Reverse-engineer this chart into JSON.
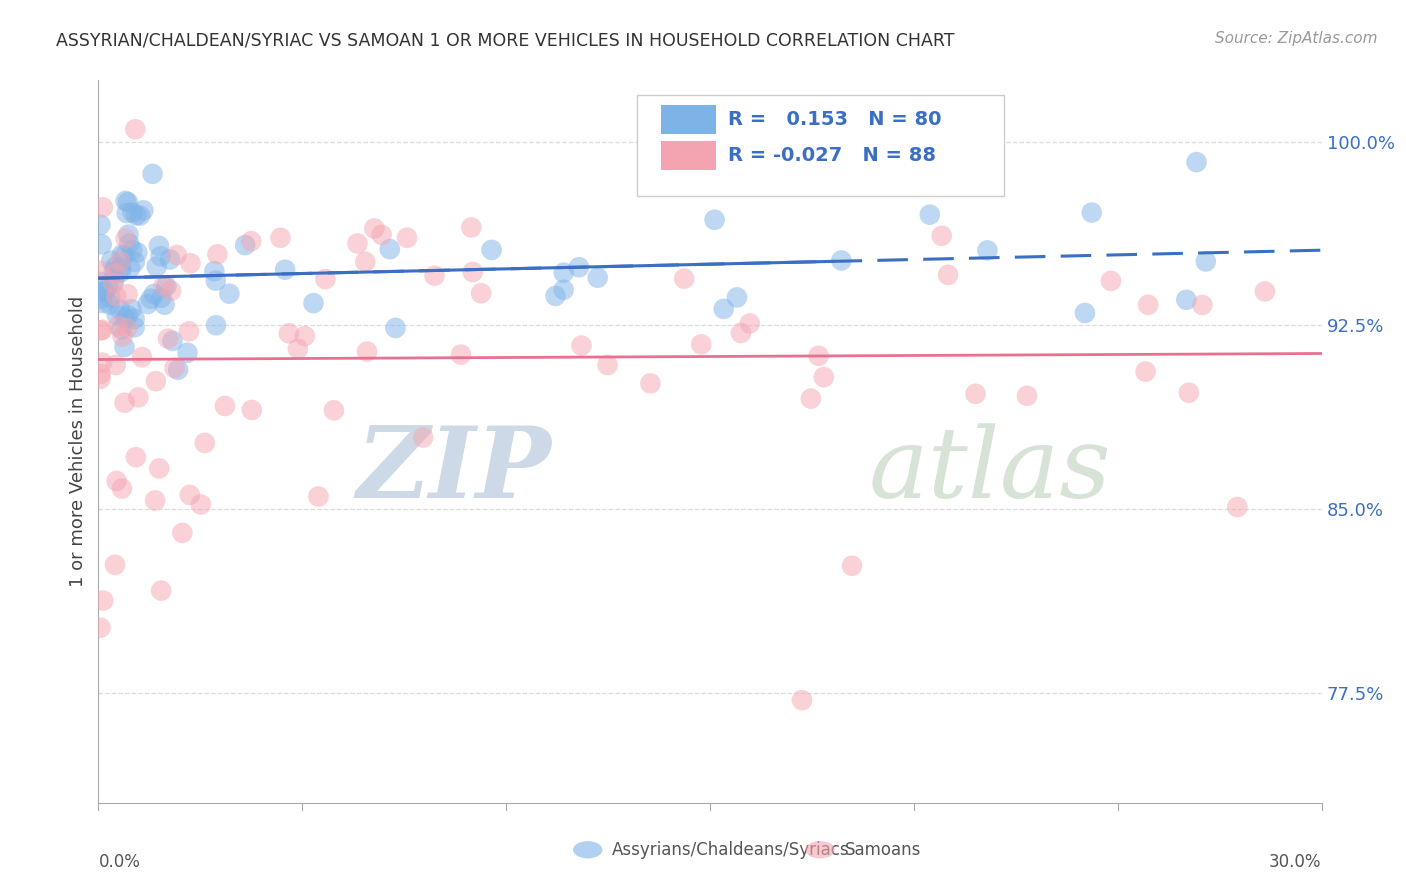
{
  "title": "ASSYRIAN/CHALDEAN/SYRIAC VS SAMOAN 1 OR MORE VEHICLES IN HOUSEHOLD CORRELATION CHART",
  "source": "Source: ZipAtlas.com",
  "ylabel": "1 or more Vehicles in Household",
  "ytick_right_vals": [
    77.5,
    85.0,
    92.5,
    100.0
  ],
  "xmin": 0.0,
  "xmax": 30.0,
  "ymin": 73.0,
  "ymax": 102.5,
  "blue_color": "#7EB3E8",
  "pink_color": "#F4A4B0",
  "blue_line_color": "#3B6FC4",
  "pink_line_color": "#E87090",
  "blue_label": "Assyrians/Chaldeans/Syriacs",
  "pink_label": "Samoans",
  "blue_R": 0.153,
  "blue_N": 80,
  "pink_R": -0.027,
  "pink_N": 88,
  "watermark_zip": "ZIP",
  "watermark_atlas": "atlas",
  "watermark_color_zip": "#B8CADC",
  "watermark_color_atlas": "#C8D8C8",
  "grid_color": "#DDDDDD",
  "grid_vals": [
    77.5,
    85.0,
    92.5,
    100.0
  ]
}
